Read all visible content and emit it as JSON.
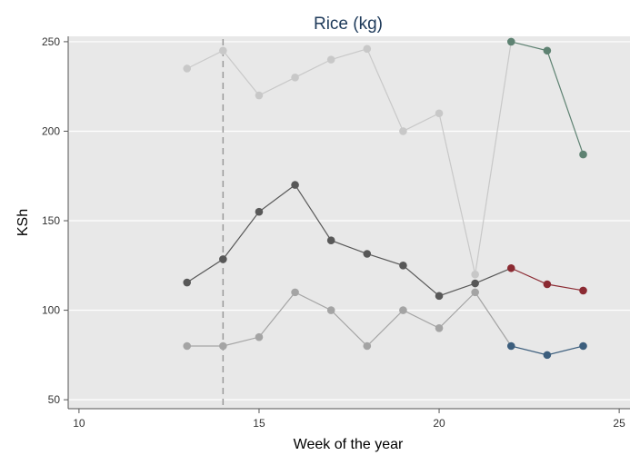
{
  "chart_data": {
    "type": "line",
    "title": "Rice (kg)",
    "xlabel": "Week of the year",
    "ylabel": "KSh",
    "xlim": [
      9.7,
      25.3
    ],
    "ylim": [
      45,
      253
    ],
    "xticks": [
      10,
      15,
      20,
      25
    ],
    "yticks": [
      50,
      100,
      150,
      200,
      250
    ],
    "grid": "horizontal",
    "reference_line": {
      "x": 14,
      "style": "dashed",
      "color": "#9a9a9a"
    },
    "background_color": "#e8e8e8",
    "series": [
      {
        "color": "#c8c8c8",
        "x": [
          13,
          14,
          15,
          16,
          17,
          18,
          19,
          20,
          21
        ],
        "values": [
          235,
          245,
          220,
          230,
          240,
          246,
          200,
          210,
          120
        ]
      },
      {
        "color": "#5e8272",
        "x": [
          22,
          23,
          24
        ],
        "values": [
          250,
          245,
          187
        ]
      },
      {
        "color": "#585858",
        "x": [
          13,
          14,
          15,
          16,
          17,
          18,
          19,
          20,
          21
        ],
        "values": [
          115.5,
          128.5,
          155,
          170,
          139,
          131.5,
          125,
          108,
          115
        ]
      },
      {
        "color": "#8b2a32",
        "x": [
          22,
          23,
          24
        ],
        "values": [
          123.5,
          114.5,
          111
        ]
      },
      {
        "color": "#a4a4a4",
        "x": [
          13,
          14,
          15,
          16,
          17,
          18,
          19,
          20,
          21
        ],
        "values": [
          80,
          80,
          85,
          110,
          100,
          80,
          100,
          90,
          110
        ]
      },
      {
        "color": "#3c5e7d",
        "x": [
          22,
          23,
          24
        ],
        "values": [
          80,
          75,
          80
        ]
      }
    ],
    "connectors": [
      {
        "color": "#c8c8c8",
        "from": [
          21,
          120
        ],
        "to": [
          22,
          250
        ]
      },
      {
        "color": "#585858",
        "from": [
          21,
          115
        ],
        "to": [
          22,
          123.5
        ]
      },
      {
        "color": "#a4a4a4",
        "from": [
          21,
          110
        ],
        "to": [
          22,
          80
        ]
      }
    ]
  }
}
